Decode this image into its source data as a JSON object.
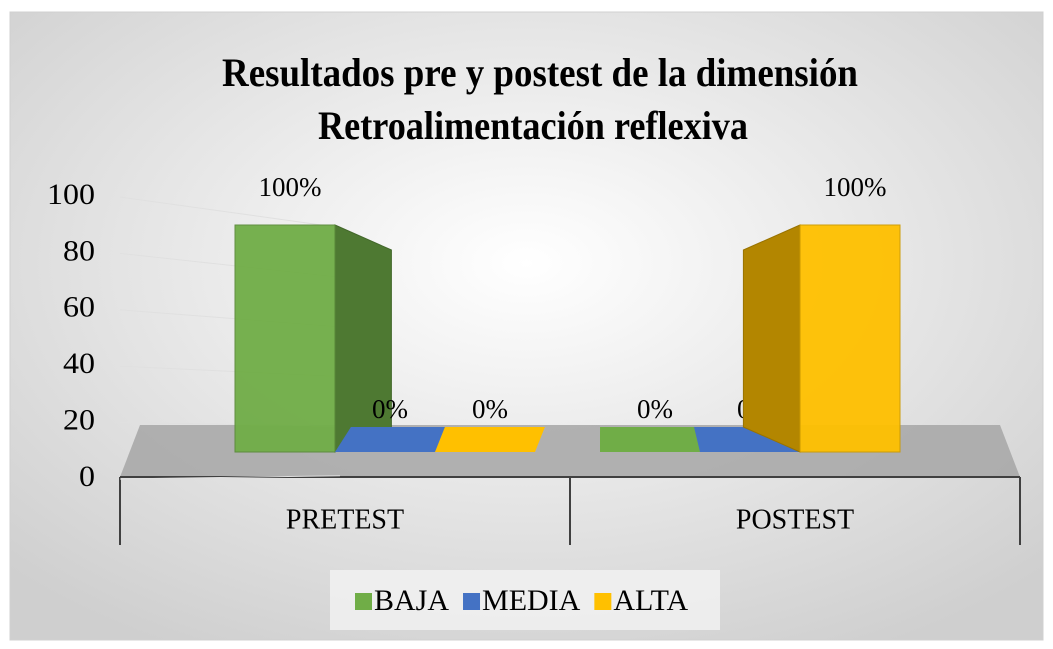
{
  "chart_data": {
    "type": "bar3d",
    "title": [
      "Resultados pre y postest de la dimensión",
      "Retroalimentación reflexiva"
    ],
    "categories": [
      "PRETEST",
      "POSTEST"
    ],
    "series": [
      {
        "name": "BAJA",
        "color": "#70ad47",
        "values": [
          100,
          0
        ],
        "value_labels": [
          "100%",
          "0%"
        ]
      },
      {
        "name": "MEDIA",
        "color": "#4472c4",
        "values": [
          0,
          0
        ],
        "value_labels": [
          "0%",
          "0%"
        ]
      },
      {
        "name": "ALTA",
        "color": "#ffc000",
        "values": [
          0,
          100
        ],
        "value_labels": [
          "0%",
          "100%"
        ]
      }
    ],
    "ylim": [
      0,
      100
    ],
    "yticks": [
      0,
      20,
      40,
      60,
      80,
      100
    ],
    "grid": true,
    "legend": "bottom"
  }
}
